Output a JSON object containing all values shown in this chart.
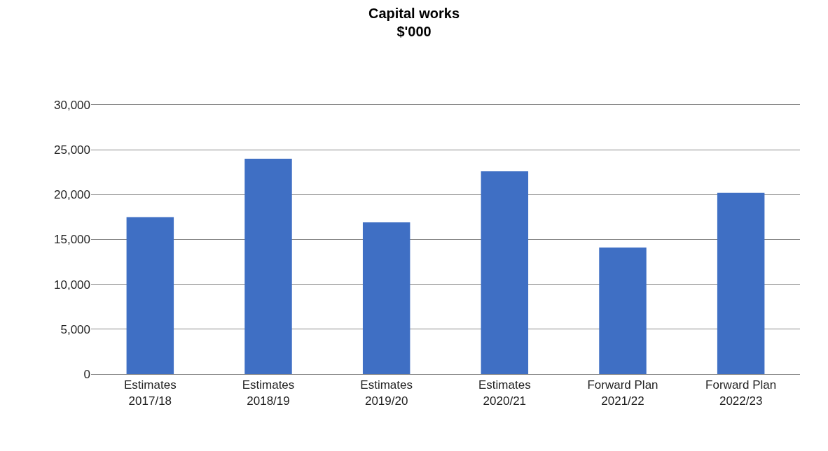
{
  "chart_data": {
    "type": "bar",
    "title": "Capital works",
    "subtitle": "$'000",
    "categories": [
      "Estimates\n2017/18",
      "Estimates\n2018/19",
      "Estimates\n2019/20",
      "Estimates\n2020/21",
      "Forward Plan\n2021/22",
      "Forward Plan\n2022/23"
    ],
    "values": [
      17500,
      24000,
      16900,
      22600,
      14100,
      20200
    ],
    "color": "#3f6fc4",
    "ylim": [
      0,
      30000
    ],
    "yticks": [
      {
        "value": 0,
        "label": "0"
      },
      {
        "value": 5000,
        "label": "5,000"
      },
      {
        "value": 10000,
        "label": "10,000"
      },
      {
        "value": 15000,
        "label": "15,000"
      },
      {
        "value": 20000,
        "label": "20,000"
      },
      {
        "value": 25000,
        "label": "25,000"
      },
      {
        "value": 30000,
        "label": "30,000"
      }
    ],
    "grid": "y"
  }
}
